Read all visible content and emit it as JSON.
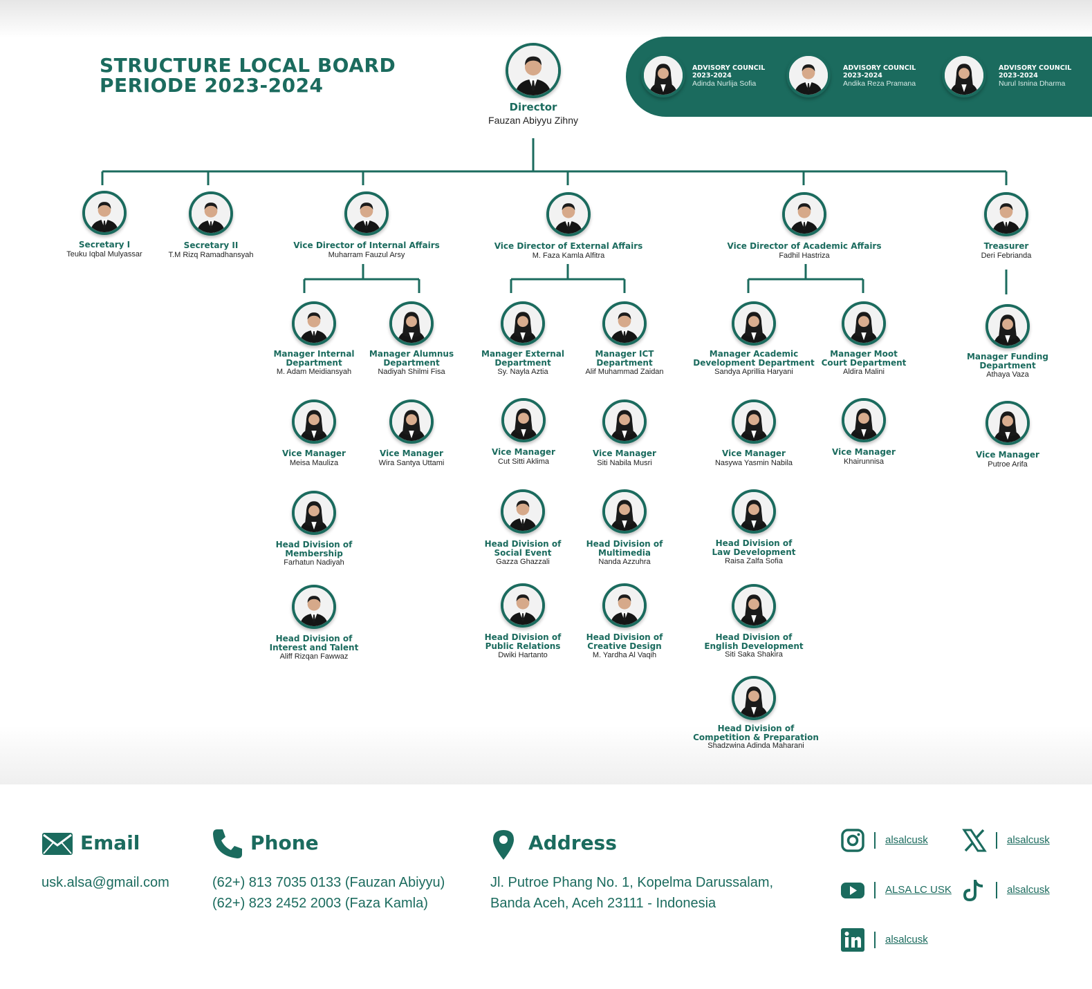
{
  "title": {
    "line1": "STRUCTURE LOCAL BOARD",
    "line2": "PERIODE 2023-2024"
  },
  "advisory": [
    {
      "label": "ADVISORY COUNCIL",
      "period": "2023-2024",
      "name": "Adinda Nurlija Sofia"
    },
    {
      "label": "ADVISORY COUNCIL",
      "period": "2023-2024",
      "name": "Andika Reza Pramana"
    },
    {
      "label": "ADVISORY COUNCIL",
      "period": "2023-2024",
      "name": "Nurul Isnina Dharma"
    }
  ],
  "director": {
    "role": "Director",
    "name": "Fauzan Abiyyu Zihny"
  },
  "secretary1": {
    "role": "Secretary I",
    "name": "Teuku Iqbal Mulyassar"
  },
  "secretary2": {
    "role": "Secretary II",
    "name": "T.M Rizq Ramadhansyah"
  },
  "treasurer": {
    "role": "Treasurer",
    "name": "Deri Febrianda"
  },
  "vd_internal": {
    "role": "Vice Director of Internal Affairs",
    "name": "Muharram Fauzul Arsy"
  },
  "vd_external": {
    "role": "Vice Director of External Affairs",
    "name": "M. Faza Kamla Alfitra"
  },
  "vd_academic": {
    "role": "Vice Director of Academic Affairs",
    "name": "Fadhil Hastriza"
  },
  "internal": {
    "mgr_internal": {
      "role1": "Manager Internal",
      "role2": "Department",
      "name": "M. Adam Meidiansyah"
    },
    "mgr_alumnus": {
      "role1": "Manager Alumnus",
      "role2": "Department",
      "name": "Nadiyah Shilmi Fisa"
    },
    "vm_internal": {
      "role": "Vice Manager",
      "name": "Meisa Mauliza"
    },
    "vm_alumnus": {
      "role": "Vice Manager",
      "name": "Wira Santya Uttami"
    },
    "hd_membership": {
      "role1": "Head Division of",
      "role2": "Membership",
      "name": "Farhatun Nadiyah"
    },
    "hd_interest": {
      "role1": "Head Division of",
      "role2": "Interest and Talent",
      "name": "Aliff Rizqan Fawwaz"
    }
  },
  "external": {
    "mgr_external": {
      "role1": "Manager External",
      "role2": "Department",
      "name": "Sy. Nayla Aztia"
    },
    "mgr_ict": {
      "role1": "Manager ICT",
      "role2": "Department",
      "name": "Alif Muhammad Zaidan"
    },
    "vm_external": {
      "role": "Vice Manager",
      "name": "Cut Sitti Aklima"
    },
    "vm_ict": {
      "role": "Vice Manager",
      "name": "Siti Nabila Musri"
    },
    "hd_social": {
      "role1": "Head Division of",
      "role2": "Social Event",
      "name": "Gazza Ghazzali"
    },
    "hd_multimedia": {
      "role1": "Head Division of",
      "role2": "Multimedia",
      "name": "Nanda Azzuhra"
    },
    "hd_pr": {
      "role1": "Head Division of",
      "role2": "Public Relations",
      "name": "Dwiki Hartanto"
    },
    "hd_creative": {
      "role1": "Head Division of",
      "role2": "Creative Design",
      "name": "M. Yardha Al Vaqih"
    }
  },
  "academic": {
    "mgr_academic": {
      "role1": "Manager Academic",
      "role2": "Development Department",
      "name": "Sandya Aprillia Haryani"
    },
    "mgr_moot": {
      "role1": "Manager Moot",
      "role2": "Court Department",
      "name": "Aldira Malini"
    },
    "vm_academic": {
      "role": "Vice Manager",
      "name": "Nasywa Yasmin Nabila"
    },
    "vm_moot": {
      "role": "Vice Manager",
      "name": "Khairunnisa"
    },
    "hd_law": {
      "role1": "Head Division of",
      "role2": "Law Development",
      "name": "Raisa Zalfa Sofia"
    },
    "hd_english": {
      "role1": "Head Division of",
      "role2": "English Development",
      "name": "Siti Saka Shakira"
    },
    "hd_competition": {
      "role1": "Head Division of",
      "role2": "Competition & Preparation",
      "name": "Shadzwina Adinda Maharani"
    }
  },
  "treasury": {
    "mgr_funding": {
      "role1": "Manager Funding",
      "role2": "Department",
      "name": "Athaya Vaza"
    },
    "vm_funding": {
      "role": "Vice Manager",
      "name": "Putroe Arifa"
    }
  },
  "contact": {
    "email_heading": "Email",
    "email": "usk.alsa@gmail.com",
    "phone_heading": "Phone",
    "phone1": "(62+) 813 7035 0133 (Fauzan Abiyyu)",
    "phone2": "(62+) 823 2452 2003 (Faza Kamla)",
    "address_heading": "Address",
    "address1": "Jl. Putroe Phang No. 1, Kopelma Darussalam,",
    "address2": "Banda Aceh, Aceh 23111 - Indonesia"
  },
  "social": {
    "instagram": "alsalcusk",
    "x": "alsalcusk",
    "youtube": "ALSA LC USK",
    "tiktok": "alsalcusk",
    "linkedin": "alsalcusk"
  },
  "colors": {
    "brand": "#1b6b5e",
    "text": "#222222",
    "white": "#ffffff"
  }
}
